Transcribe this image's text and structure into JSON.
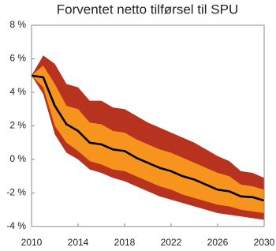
{
  "chart_data": {
    "type": "fan",
    "title": "Forventet netto tilførsel til SPU",
    "x": [
      2010,
      2011,
      2012,
      2013,
      2014,
      2015,
      2016,
      2017,
      2018,
      2019,
      2020,
      2021,
      2022,
      2023,
      2024,
      2025,
      2026,
      2027,
      2028,
      2029,
      2030
    ],
    "bands": [
      {
        "color": "#b7321f",
        "upper": [
          5,
          6.2,
          5.7,
          4.5,
          4.3,
          3.5,
          3.5,
          3.1,
          3.0,
          2.6,
          2.2,
          1.9,
          1.6,
          1.3,
          1.0,
          0.6,
          0.2,
          -0.1,
          -0.7,
          -0.8,
          -1.1
        ],
        "lower": [
          5,
          3.9,
          1.5,
          0.4,
          0.0,
          -0.6,
          -0.8,
          -1.1,
          -1.3,
          -1.6,
          -1.9,
          -2.2,
          -2.4,
          -2.6,
          -2.8,
          -3.0,
          -3.2,
          -3.3,
          -3.4,
          -3.5,
          -3.6
        ]
      },
      {
        "color": "#f7941d",
        "upper": [
          5,
          5.6,
          4.5,
          3.2,
          3.0,
          2.2,
          2.1,
          1.7,
          1.6,
          1.2,
          0.9,
          0.6,
          0.4,
          0.1,
          -0.2,
          -0.5,
          -0.8,
          -1.0,
          -1.5,
          -1.6,
          -1.8
        ],
        "lower": [
          5,
          4.3,
          2.0,
          1.0,
          0.5,
          -0.1,
          -0.3,
          -0.6,
          -0.7,
          -1.0,
          -1.3,
          -1.6,
          -1.8,
          -2.1,
          -2.3,
          -2.5,
          -2.7,
          -2.8,
          -3.0,
          -3.1,
          -3.2
        ]
      }
    ],
    "series": [
      {
        "color": "#000000",
        "values": [
          5,
          4.9,
          3.2,
          2.1,
          1.7,
          1.0,
          0.9,
          0.6,
          0.5,
          0.1,
          -0.2,
          -0.5,
          -0.7,
          -1.0,
          -1.2,
          -1.5,
          -1.8,
          -1.9,
          -2.2,
          -2.25,
          -2.45
        ]
      }
    ],
    "xlim": [
      2010,
      2030
    ],
    "xticks": [
      2010,
      2014,
      2018,
      2022,
      2026,
      2030
    ],
    "ylim": [
      -4,
      8
    ],
    "yticks": [
      {
        "value": -4,
        "label": "-4 %"
      },
      {
        "value": -2,
        "label": "-2 %"
      },
      {
        "value": 0,
        "label": "0 %"
      },
      {
        "value": 2,
        "label": "2 %"
      },
      {
        "value": 4,
        "label": "4 %"
      },
      {
        "value": 6,
        "label": "6 %"
      },
      {
        "value": 8,
        "label": "8 %"
      }
    ],
    "grid": false
  }
}
